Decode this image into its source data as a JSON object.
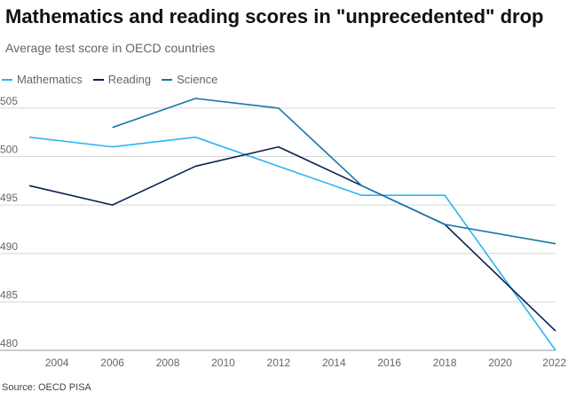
{
  "chart_data": {
    "type": "line",
    "title": "Mathematics and reading scores in \"unprecedented\" drop",
    "subtitle": "Average test score in OECD countries",
    "source": "Source: OECD PISA",
    "xlabel": "",
    "ylabel": "",
    "x_ticks": [
      2004,
      2006,
      2008,
      2010,
      2012,
      2014,
      2016,
      2018,
      2020,
      2022
    ],
    "y_ticks": [
      480,
      485,
      490,
      495,
      500,
      505
    ],
    "xlim": [
      2003,
      2022
    ],
    "ylim": [
      480,
      506
    ],
    "grid": true,
    "legend_position": "top-left",
    "series": [
      {
        "name": "Mathematics",
        "color": "#29b6f6",
        "points": [
          [
            2003,
            502
          ],
          [
            2006,
            501
          ],
          [
            2009,
            502
          ],
          [
            2012,
            499
          ],
          [
            2015,
            496
          ],
          [
            2018,
            496
          ],
          [
            2022,
            480
          ]
        ]
      },
      {
        "name": "Reading",
        "color": "#0b1f4f",
        "points": [
          [
            2003,
            497
          ],
          [
            2006,
            495
          ],
          [
            2009,
            499
          ],
          [
            2012,
            501
          ],
          [
            2015,
            497
          ],
          [
            2018,
            493
          ],
          [
            2022,
            482
          ]
        ]
      },
      {
        "name": "Science",
        "color": "#1777a8",
        "points": [
          [
            2006,
            503
          ],
          [
            2009,
            506
          ],
          [
            2012,
            505
          ],
          [
            2015,
            497
          ],
          [
            2018,
            493
          ],
          [
            2022,
            491
          ]
        ]
      }
    ]
  }
}
